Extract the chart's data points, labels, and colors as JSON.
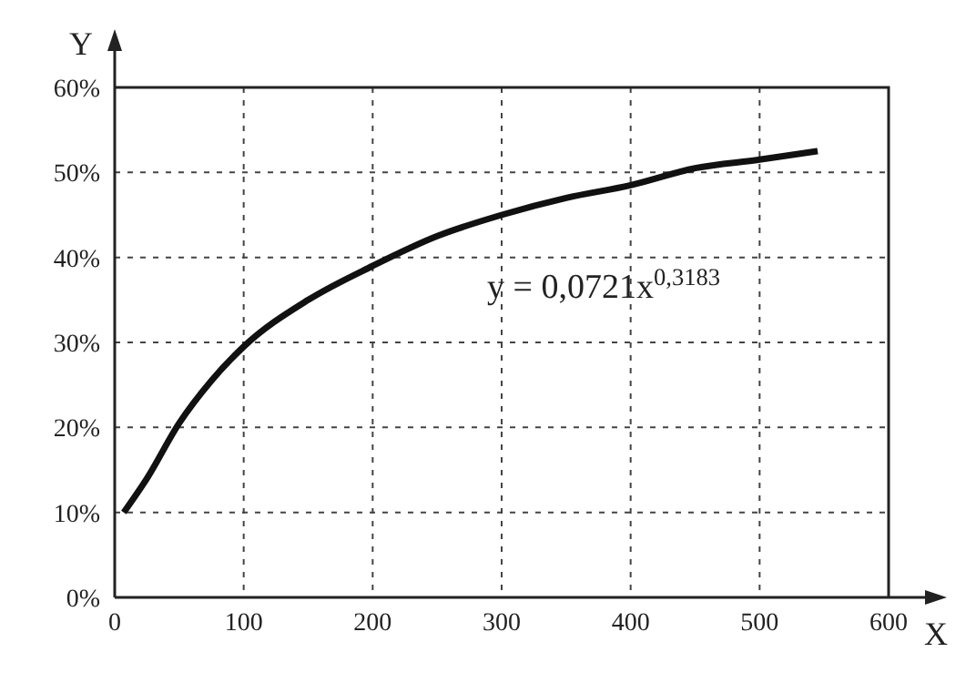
{
  "chart_data": {
    "type": "line",
    "xlabel": "X",
    "ylabel": "Y",
    "annotations": [
      "y = 0,0721x$^{0,3183}$"
    ],
    "x": [
      7,
      25,
      50,
      75,
      100,
      150,
      200,
      250,
      300,
      350,
      400,
      450,
      500,
      545
    ],
    "series": [
      {
        "color": "#111111",
        "values": [
          10,
          14,
          20.5,
          25.5,
          29.5,
          35,
          39,
          42.5,
          45,
          47,
          48.5,
          50.5,
          51.5,
          52.5
        ]
      }
    ],
    "xlim": [
      0,
      600
    ],
    "xticks": [
      0,
      100,
      200,
      300,
      400,
      500,
      600
    ],
    "ylim": [
      0,
      60
    ],
    "yticks": [
      {
        "value": 0,
        "label": "0%"
      },
      {
        "value": 10,
        "label": "10%"
      },
      {
        "value": 20,
        "label": "20%"
      },
      {
        "value": 30,
        "label": "30%"
      },
      {
        "value": 40,
        "label": "40%"
      },
      {
        "value": 50,
        "label": "50%"
      },
      {
        "value": 60,
        "label": "60%"
      }
    ],
    "grid": true,
    "marker": "none",
    "line_style": "solid",
    "legend": false
  }
}
